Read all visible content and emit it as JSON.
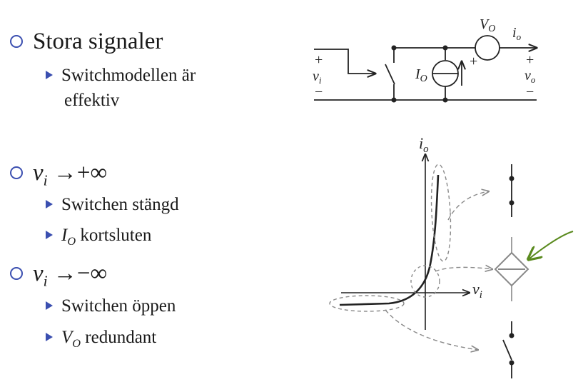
{
  "bullets": {
    "b1": {
      "text": "Stora signaler"
    },
    "b1_sub": {
      "line1": "Switchmodellen är",
      "line2": "effektiv"
    },
    "b2": {
      "var": "v",
      "sub": "i",
      "arrow": "→",
      "val": "+∞"
    },
    "b2_sub1": {
      "text": "Switchen stängd"
    },
    "b2_sub2": {
      "var": "I",
      "sub": "O",
      "text": " kortsluten"
    },
    "b3": {
      "var": "v",
      "sub": "i",
      "arrow": "→",
      "val": "−∞"
    },
    "b3_sub1": {
      "text": "Switchen öppen"
    },
    "b3_sub2": {
      "var": "V",
      "sub": "O",
      "text": " redundant"
    }
  },
  "circuit": {
    "vo_source": {
      "var": "V",
      "sub": "O"
    },
    "io": {
      "var": "i",
      "sub": "o"
    },
    "io_source": {
      "var": "I",
      "sub": "O"
    },
    "vi": {
      "var": "v",
      "sub": "i"
    },
    "vout": {
      "var": "v",
      "sub": "o"
    },
    "plus": "+",
    "minus": "−"
  },
  "graph": {
    "ylabel": {
      "var": "i",
      "sub": "o"
    },
    "xlabel": {
      "var": "v",
      "sub": "i"
    }
  },
  "colors": {
    "bullet": "#3b4fb0",
    "annotation": "#5a8a1e",
    "dashed": "#8a8a8a",
    "diamond": "#888888"
  }
}
